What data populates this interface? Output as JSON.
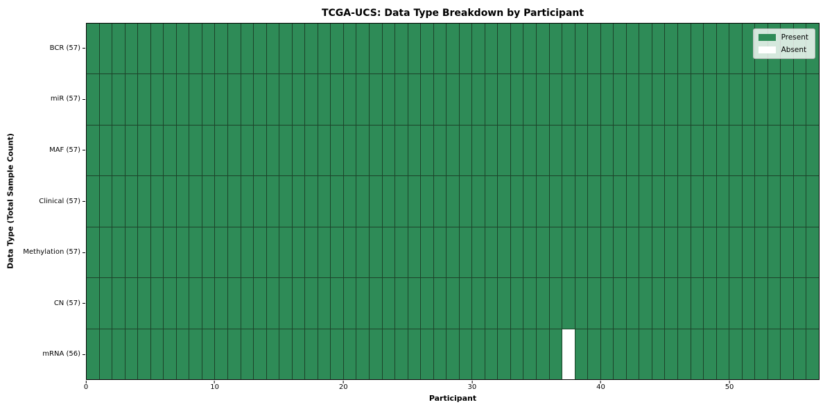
{
  "chart_data": {
    "type": "heatmap",
    "title": "TCGA-UCS: Data Type Breakdown by Participant",
    "xlabel": "Participant",
    "ylabel": "Data Type (Total Sample Count)",
    "x_ticks": [
      0,
      10,
      20,
      30,
      40,
      50
    ],
    "x_range": [
      0,
      57
    ],
    "n_participants": 57,
    "rows": [
      {
        "label": "BCR (57)",
        "data_type": "BCR",
        "total": 57,
        "absent_participants": []
      },
      {
        "label": "miR (57)",
        "data_type": "miR",
        "total": 57,
        "absent_participants": []
      },
      {
        "label": "MAF (57)",
        "data_type": "MAF",
        "total": 57,
        "absent_participants": []
      },
      {
        "label": "Clinical (57)",
        "data_type": "Clinical",
        "total": 57,
        "absent_participants": []
      },
      {
        "label": "Methylation (57)",
        "data_type": "Methylation",
        "total": 57,
        "absent_participants": []
      },
      {
        "label": "CN (57)",
        "data_type": "CN",
        "total": 57,
        "absent_participants": []
      },
      {
        "label": "mRNA (56)",
        "data_type": "mRNA",
        "total": 56,
        "absent_participants": [
          37
        ]
      }
    ],
    "legend": {
      "position": "upper right",
      "entries": [
        {
          "label": "Present",
          "color": "#2e8b57"
        },
        {
          "label": "Absent",
          "color": "#ffffff"
        }
      ]
    },
    "colors": {
      "present": "#2e8b57",
      "absent": "#ffffff",
      "cell_edge": "#1c4229",
      "spine": "#000000",
      "background": "#ffffff"
    }
  }
}
